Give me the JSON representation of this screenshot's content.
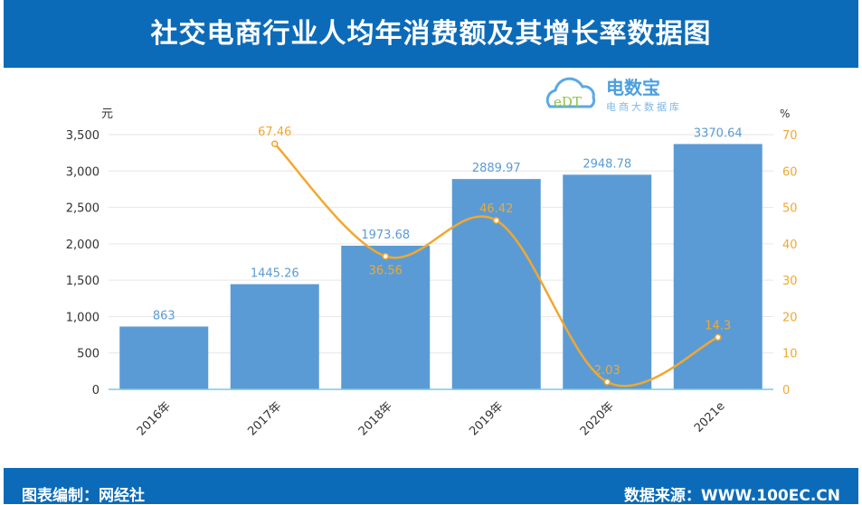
{
  "title": "社交电商行业人均年消费额及其增长率数据图",
  "footer": {
    "left": "图表编制：网经社",
    "right": "数据来源：WWW.100EC.CN"
  },
  "logo": {
    "name": "电数宝",
    "sub": "电商大数据库",
    "mark": "eDT"
  },
  "colors": {
    "header": "#0b6bb8",
    "bar": "#5b9bd5",
    "line": "#f0a830",
    "bar_label": "#5b9bd5",
    "line_label": "#f0a830"
  },
  "chart_data": {
    "type": "bar+line",
    "categories": [
      "2016年",
      "2017年",
      "2018年",
      "2019年",
      "2020年",
      "2021e"
    ],
    "series": [
      {
        "type": "bar",
        "axis": "left",
        "values": [
          863,
          1445.26,
          1973.68,
          2889.97,
          2948.78,
          3370.64
        ],
        "labels": [
          "863",
          "1445.26",
          "1973.68",
          "2889.97",
          "2948.78",
          "3370.64"
        ]
      },
      {
        "type": "line",
        "axis": "right",
        "smooth": true,
        "values": [
          null,
          67.46,
          36.56,
          46.42,
          2.03,
          14.3
        ],
        "labels": [
          "",
          "67.46",
          "36.56",
          "46.42",
          "2.03",
          "14.3"
        ]
      }
    ],
    "y_left": {
      "unit": "元",
      "range": [
        0,
        3500
      ],
      "ticks": [
        "0",
        "500",
        "1,000",
        "1,500",
        "2,000",
        "2,500",
        "3,000",
        "3,500"
      ]
    },
    "y_right": {
      "unit": "%",
      "range": [
        0,
        70
      ],
      "ticks": [
        "0",
        "10",
        "20",
        "30",
        "40",
        "50",
        "60",
        "70"
      ]
    },
    "grid": true
  }
}
